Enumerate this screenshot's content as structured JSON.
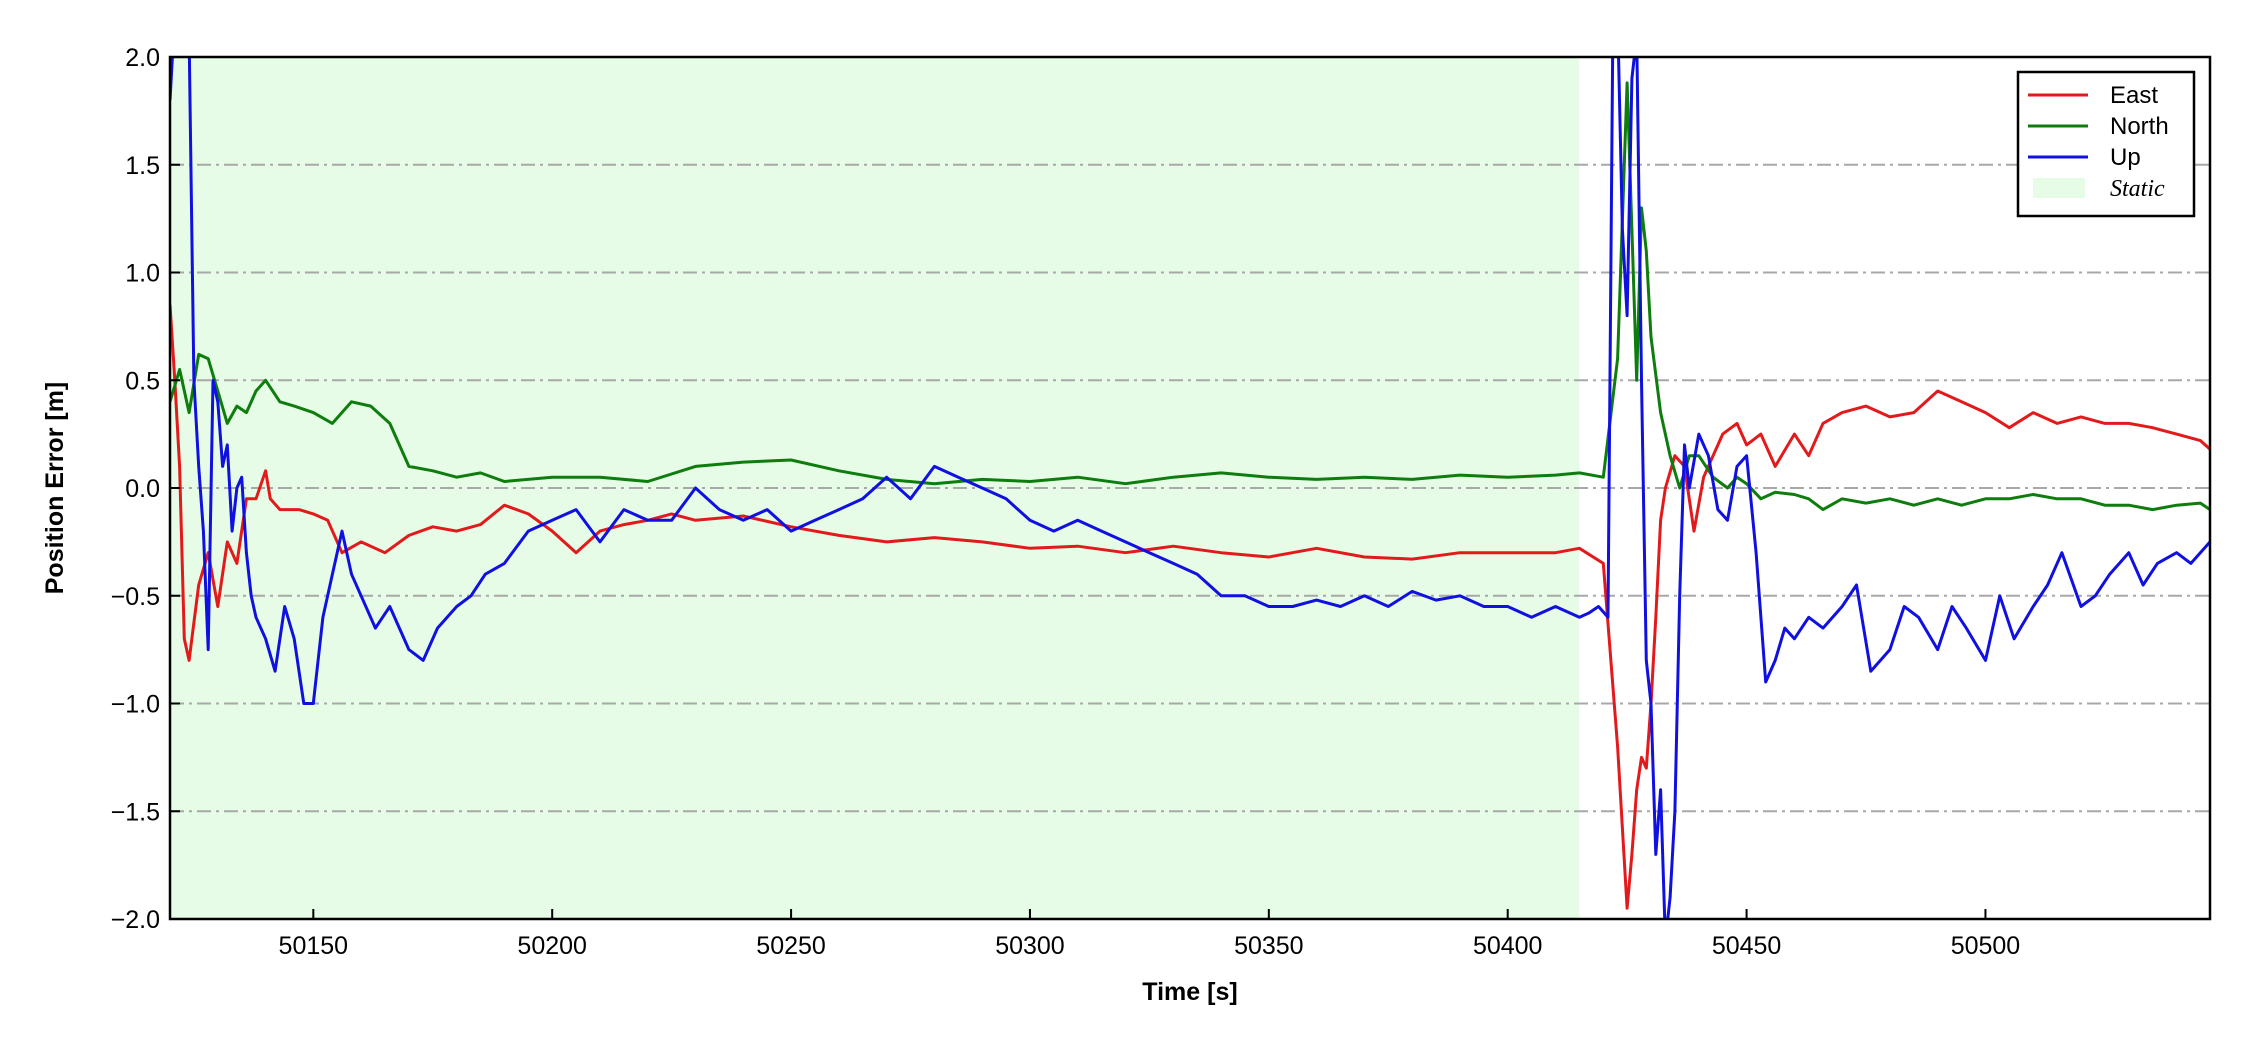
{
  "chart_data": {
    "type": "line",
    "xlabel": "Time [s]",
    "ylabel": "Position Error [m]",
    "xlim": [
      50120,
      50547
    ],
    "ylim": [
      -2.0,
      2.0
    ],
    "xticks": [
      50150,
      50200,
      50250,
      50300,
      50350,
      50400,
      50450,
      50500
    ],
    "xtick_labels": [
      "50150",
      "50200",
      "50250",
      "50300",
      "50350",
      "50400",
      "50450",
      "50500"
    ],
    "yticks": [
      -2.0,
      -1.5,
      -1.0,
      -0.5,
      0.0,
      0.5,
      1.0,
      1.5,
      2.0
    ],
    "ytick_labels": [
      "−2.0",
      "−1.5",
      "−1.0",
      "−0.5",
      "0.0",
      "0.5",
      "1.0",
      "1.5",
      "2.0"
    ],
    "grid": "horizontal dash-dot",
    "legend_position": "top-right",
    "static_region": {
      "label": "Static",
      "x_start": 50120,
      "x_end": 50415,
      "color": "#e6fce6"
    },
    "series": [
      {
        "name": "East",
        "color": "#e31a1c",
        "x": [
          50120,
          50121,
          50122,
          50123,
          50124,
          50126,
          50128,
          50130,
          50132,
          50134,
          50136,
          50138,
          50140,
          50141,
          50143,
          50145,
          50147,
          50150,
          50153,
          50156,
          50160,
          50165,
          50170,
          50175,
          50180,
          50185,
          50190,
          50195,
          50200,
          50205,
          50210,
          50215,
          50220,
          50225,
          50230,
          50240,
          50250,
          50260,
          50270,
          50280,
          50290,
          50300,
          50310,
          50320,
          50330,
          50340,
          50350,
          50360,
          50370,
          50380,
          50390,
          50400,
          50410,
          50415,
          50420,
          50423,
          50425,
          50426,
          50427,
          50428,
          50429,
          50430,
          50431,
          50432,
          50433,
          50435,
          50437,
          50439,
          50441,
          50443,
          50445,
          50448,
          50450,
          50453,
          50456,
          50460,
          50463,
          50466,
          50470,
          50475,
          50480,
          50485,
          50490,
          50495,
          50500,
          50505,
          50510,
          50515,
          50520,
          50525,
          50530,
          50535,
          50540,
          50545,
          50547
        ],
        "y": [
          0.85,
          0.5,
          0.1,
          -0.7,
          -0.8,
          -0.45,
          -0.3,
          -0.55,
          -0.25,
          -0.35,
          -0.05,
          -0.05,
          0.08,
          -0.05,
          -0.1,
          -0.1,
          -0.1,
          -0.12,
          -0.15,
          -0.3,
          -0.25,
          -0.3,
          -0.22,
          -0.18,
          -0.2,
          -0.17,
          -0.08,
          -0.12,
          -0.2,
          -0.3,
          -0.2,
          -0.17,
          -0.15,
          -0.12,
          -0.15,
          -0.13,
          -0.18,
          -0.22,
          -0.25,
          -0.23,
          -0.25,
          -0.28,
          -0.27,
          -0.3,
          -0.27,
          -0.3,
          -0.32,
          -0.28,
          -0.32,
          -0.33,
          -0.3,
          -0.3,
          -0.3,
          -0.28,
          -0.35,
          -1.2,
          -1.95,
          -1.7,
          -1.4,
          -1.25,
          -1.3,
          -1.0,
          -0.6,
          -0.15,
          0.0,
          0.15,
          0.1,
          -0.2,
          0.05,
          0.15,
          0.25,
          0.3,
          0.2,
          0.25,
          0.1,
          0.25,
          0.15,
          0.3,
          0.35,
          0.38,
          0.33,
          0.35,
          0.45,
          0.4,
          0.35,
          0.28,
          0.35,
          0.3,
          0.33,
          0.3,
          0.3,
          0.28,
          0.25,
          0.22,
          0.18
        ]
      },
      {
        "name": "North",
        "color": "#0e7d0e",
        "x": [
          50120,
          50122,
          50124,
          50126,
          50128,
          50130,
          50132,
          50134,
          50136,
          50138,
          50140,
          50143,
          50146,
          50150,
          50154,
          50158,
          50162,
          50166,
          50170,
          50175,
          50180,
          50185,
          50190,
          50200,
          50210,
          50220,
          50230,
          50240,
          50250,
          50260,
          50270,
          50280,
          50290,
          50300,
          50310,
          50320,
          50330,
          50340,
          50350,
          50360,
          50370,
          50380,
          50390,
          50400,
          50410,
          50415,
          50420,
          50423,
          50425,
          50426,
          50427,
          50428,
          50429,
          50430,
          50432,
          50434,
          50436,
          50438,
          50440,
          50443,
          50446,
          50448,
          50450,
          50453,
          50456,
          50460,
          50463,
          50466,
          50470,
          50475,
          50480,
          50485,
          50490,
          50495,
          50500,
          50505,
          50510,
          50515,
          50520,
          50525,
          50530,
          50535,
          50540,
          50545,
          50547
        ],
        "y": [
          0.4,
          0.55,
          0.35,
          0.62,
          0.6,
          0.45,
          0.3,
          0.38,
          0.35,
          0.45,
          0.5,
          0.4,
          0.38,
          0.35,
          0.3,
          0.4,
          0.38,
          0.3,
          0.1,
          0.08,
          0.05,
          0.07,
          0.03,
          0.05,
          0.05,
          0.03,
          0.1,
          0.12,
          0.13,
          0.08,
          0.04,
          0.02,
          0.04,
          0.03,
          0.05,
          0.02,
          0.05,
          0.07,
          0.05,
          0.04,
          0.05,
          0.04,
          0.06,
          0.05,
          0.06,
          0.07,
          0.05,
          0.6,
          1.88,
          1.2,
          0.5,
          1.3,
          1.1,
          0.7,
          0.35,
          0.15,
          0.0,
          0.15,
          0.15,
          0.05,
          0.0,
          0.05,
          0.02,
          -0.05,
          -0.02,
          -0.03,
          -0.05,
          -0.1,
          -0.05,
          -0.07,
          -0.05,
          -0.08,
          -0.05,
          -0.08,
          -0.05,
          -0.05,
          -0.03,
          -0.05,
          -0.05,
          -0.08,
          -0.08,
          -0.1,
          -0.08,
          -0.07,
          -0.1
        ]
      },
      {
        "name": "Up",
        "color": "#1010e0",
        "x": [
          50120,
          50121,
          50122,
          50123,
          50124,
          50125,
          50126,
          50127,
          50128,
          50129,
          50130,
          50131,
          50132,
          50133,
          50134,
          50135,
          50136,
          50137,
          50138,
          50140,
          50142,
          50144,
          50146,
          50148,
          50150,
          50152,
          50154,
          50156,
          50158,
          50160,
          50163,
          50166,
          50170,
          50173,
          50176,
          50180,
          50183,
          50186,
          50190,
          50195,
          50200,
          50205,
          50210,
          50215,
          50220,
          50225,
          50230,
          50235,
          50240,
          50245,
          50250,
          50255,
          50260,
          50265,
          50270,
          50275,
          50280,
          50285,
          50290,
          50295,
          50300,
          50305,
          50310,
          50315,
          50320,
          50325,
          50330,
          50335,
          50340,
          50345,
          50350,
          50355,
          50360,
          50365,
          50370,
          50375,
          50380,
          50385,
          50390,
          50395,
          50400,
          50405,
          50410,
          50415,
          50417,
          50419,
          50421,
          50422,
          50423,
          50424,
          50425,
          50426,
          50427,
          50428,
          50429,
          50430,
          50431,
          50432,
          50433,
          50434,
          50435,
          50436,
          50437,
          50438,
          50440,
          50442,
          50444,
          50446,
          50448,
          50450,
          50452,
          50454,
          50456,
          50458,
          50460,
          50463,
          50466,
          50470,
          50473,
          50476,
          50480,
          50483,
          50486,
          50490,
          50493,
          50496,
          50500,
          50503,
          50506,
          50510,
          50513,
          50516,
          50520,
          50523,
          50526,
          50530,
          50533,
          50536,
          50540,
          50543,
          50547
        ],
        "y": [
          1.8,
          2.2,
          2.2,
          2.1,
          2.1,
          0.5,
          0.1,
          -0.2,
          -0.75,
          0.5,
          0.4,
          0.1,
          0.2,
          -0.2,
          0.0,
          0.05,
          -0.3,
          -0.5,
          -0.6,
          -0.7,
          -0.85,
          -0.55,
          -0.7,
          -1.0,
          -1.0,
          -0.6,
          -0.4,
          -0.2,
          -0.4,
          -0.5,
          -0.65,
          -0.55,
          -0.75,
          -0.8,
          -0.65,
          -0.55,
          -0.5,
          -0.4,
          -0.35,
          -0.2,
          -0.15,
          -0.1,
          -0.25,
          -0.1,
          -0.15,
          -0.15,
          0.0,
          -0.1,
          -0.15,
          -0.1,
          -0.2,
          -0.15,
          -0.1,
          -0.05,
          0.05,
          -0.05,
          0.1,
          0.05,
          0.0,
          -0.05,
          -0.15,
          -0.2,
          -0.15,
          -0.2,
          -0.25,
          -0.3,
          -0.35,
          -0.4,
          -0.5,
          -0.5,
          -0.55,
          -0.55,
          -0.52,
          -0.55,
          -0.5,
          -0.55,
          -0.48,
          -0.52,
          -0.5,
          -0.55,
          -0.55,
          -0.6,
          -0.55,
          -0.6,
          -0.58,
          -0.55,
          -0.6,
          2.1,
          2.2,
          1.2,
          0.8,
          1.9,
          2.1,
          0.5,
          -0.8,
          -1.0,
          -1.7,
          -1.4,
          -2.1,
          -1.9,
          -1.5,
          -0.5,
          0.2,
          0.0,
          0.25,
          0.15,
          -0.1,
          -0.15,
          0.1,
          0.15,
          -0.3,
          -0.9,
          -0.8,
          -0.65,
          -0.7,
          -0.6,
          -0.65,
          -0.55,
          -0.45,
          -0.85,
          -0.75,
          -0.55,
          -0.6,
          -0.75,
          -0.55,
          -0.65,
          -0.8,
          -0.5,
          -0.7,
          -0.55,
          -0.45,
          -0.3,
          -0.55,
          -0.5,
          -0.4,
          -0.3,
          -0.45,
          -0.35,
          -0.3,
          -0.35,
          -0.25
        ]
      }
    ]
  }
}
